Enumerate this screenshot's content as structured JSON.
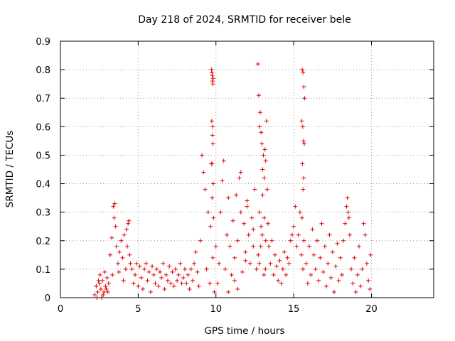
{
  "chart_data": {
    "type": "scatter",
    "title": "Day 218 of 2024, SRMTID for receiver bele",
    "xlabel": "GPS time / hours",
    "ylabel": "SRMTID / TECUs",
    "xlim": [
      0,
      24
    ],
    "ylim": [
      0,
      0.9
    ],
    "xticks": [
      0,
      5,
      10,
      15,
      20
    ],
    "yticks": [
      0,
      0.1,
      0.2,
      0.3,
      0.4,
      0.5,
      0.6,
      0.7,
      0.8,
      0.9
    ],
    "xtick_labels": [
      "0",
      "5",
      "10",
      "15",
      "20"
    ],
    "ytick_labels": [
      "0",
      "0.1",
      "0.2",
      "0.3",
      "0.4",
      "0.5",
      "0.6",
      "0.7",
      "0.8",
      "0.9"
    ],
    "grid": true,
    "marker": "+",
    "color": "#e00000",
    "series": [
      {
        "name": "SRMTID",
        "x": [
          2.2,
          2.3,
          2.4,
          2.5,
          2.6,
          2.7,
          2.8,
          2.9,
          3.0,
          2.35,
          2.55,
          2.75,
          2.95,
          3.1,
          2.45,
          2.65,
          2.85,
          3.05,
          3.2,
          3.3,
          3.4,
          3.5,
          3.45,
          3.55,
          3.6,
          3.7,
          3.8,
          3.9,
          4.0,
          4.1,
          4.2,
          4.3,
          4.35,
          4.4,
          4.5,
          3.35,
          3.75,
          4.05,
          4.25,
          4.45,
          4.6,
          4.7,
          4.8,
          4.9,
          5.0,
          5.1,
          5.2,
          5.3,
          5.4,
          5.5,
          5.6,
          5.7,
          5.8,
          5.9,
          6.0,
          6.1,
          6.2,
          6.3,
          6.4,
          6.5,
          6.6,
          6.7,
          6.8,
          6.9,
          7.0,
          7.1,
          7.2,
          7.3,
          7.4,
          7.5,
          7.6,
          7.7,
          7.8,
          7.9,
          8.0,
          8.1,
          8.2,
          8.3,
          8.4,
          8.5,
          8.6,
          8.7,
          8.8,
          8.9,
          9.0,
          9.1,
          9.2,
          9.3,
          9.4,
          9.5,
          9.6,
          9.65,
          9.7,
          9.75,
          9.8,
          9.85,
          9.9,
          10.0,
          9.72,
          9.74,
          9.76,
          9.78,
          9.8,
          9.82,
          9.73,
          9.79,
          9.77,
          9.81,
          9.75,
          9.83,
          10.1,
          10.2,
          10.3,
          10.4,
          10.5,
          10.6,
          10.7,
          10.8,
          10.9,
          11.0,
          11.1,
          11.2,
          11.3,
          11.4,
          11.5,
          11.6,
          11.7,
          11.8,
          11.9,
          12.0,
          12.1,
          12.2,
          12.3,
          12.4,
          12.5,
          12.6,
          10.8,
          11.2,
          11.6,
          12.0,
          12.4,
          11.4,
          11.9,
          12.7,
          12.75,
          12.8,
          12.85,
          12.9,
          12.95,
          13.0,
          13.05,
          13.1,
          13.15,
          13.2,
          13.25,
          13.3,
          12.8,
          12.9,
          13.0,
          13.1,
          13.2,
          12.72,
          12.78,
          12.88,
          12.98,
          13.08,
          13.18,
          13.35,
          13.4,
          13.5,
          13.6,
          13.7,
          13.8,
          13.9,
          14.0,
          14.1,
          14.2,
          14.3,
          14.4,
          14.5,
          14.6,
          14.7,
          14.8,
          14.9,
          15.0,
          15.1,
          15.2,
          15.3,
          15.4,
          15.5,
          15.55,
          15.6,
          15.65,
          15.7,
          15.52,
          15.58,
          15.62,
          15.68,
          15.56,
          15.64,
          15.6,
          15.54,
          15.66,
          15.59,
          15.8,
          15.9,
          16.0,
          16.1,
          16.2,
          16.3,
          16.4,
          16.5,
          16.6,
          16.7,
          16.8,
          16.9,
          17.0,
          17.1,
          17.2,
          17.3,
          17.4,
          17.5,
          17.6,
          17.7,
          17.8,
          17.9,
          18.0,
          18.1,
          18.2,
          18.3,
          18.4,
          18.45,
          18.5,
          18.55,
          18.6,
          18.7,
          18.8,
          18.9,
          19.0,
          19.1,
          19.2,
          19.3,
          19.4,
          19.5,
          19.6,
          19.7,
          19.8,
          19.9,
          19.95
        ],
        "y": [
          0.01,
          0.04,
          0.02,
          0.05,
          0.03,
          0.06,
          0.02,
          0.04,
          0.07,
          0.0,
          0.08,
          0.01,
          0.03,
          0.05,
          0.06,
          0.0,
          0.09,
          0.02,
          0.15,
          0.21,
          0.32,
          0.33,
          0.28,
          0.25,
          0.18,
          0.12,
          0.16,
          0.2,
          0.14,
          0.22,
          0.1,
          0.18,
          0.26,
          0.27,
          0.12,
          0.08,
          0.09,
          0.06,
          0.24,
          0.15,
          0.1,
          0.05,
          0.08,
          0.12,
          0.04,
          0.11,
          0.07,
          0.03,
          0.1,
          0.12,
          0.06,
          0.09,
          0.02,
          0.11,
          0.08,
          0.05,
          0.1,
          0.04,
          0.09,
          0.07,
          0.12,
          0.03,
          0.08,
          0.06,
          0.11,
          0.05,
          0.09,
          0.04,
          0.1,
          0.06,
          0.08,
          0.12,
          0.05,
          0.07,
          0.1,
          0.05,
          0.08,
          0.03,
          0.1,
          0.06,
          0.12,
          0.16,
          0.09,
          0.04,
          0.2,
          0.5,
          0.44,
          0.38,
          0.1,
          0.3,
          0.05,
          0.25,
          0.47,
          0.35,
          0.14,
          0.28,
          0.02,
          0.18,
          0.8,
          0.79,
          0.78,
          0.76,
          0.75,
          0.77,
          0.62,
          0.6,
          0.57,
          0.54,
          0.47,
          0.4,
          0.05,
          0.12,
          0.3,
          0.41,
          0.48,
          0.1,
          0.22,
          0.35,
          0.18,
          0.08,
          0.27,
          0.14,
          0.36,
          0.2,
          0.42,
          0.3,
          0.09,
          0.26,
          0.16,
          0.34,
          0.22,
          0.12,
          0.28,
          0.18,
          0.38,
          0.1,
          0.02,
          0.06,
          0.44,
          0.32,
          0.24,
          0.03,
          0.13,
          0.82,
          0.71,
          0.6,
          0.65,
          0.58,
          0.54,
          0.45,
          0.5,
          0.42,
          0.52,
          0.48,
          0.62,
          0.38,
          0.3,
          0.25,
          0.36,
          0.28,
          0.2,
          0.15,
          0.12,
          0.18,
          0.22,
          0.08,
          0.1,
          0.26,
          0.18,
          0.12,
          0.2,
          0.08,
          0.15,
          0.11,
          0.06,
          0.13,
          0.05,
          0.1,
          0.16,
          0.08,
          0.14,
          0.12,
          0.2,
          0.22,
          0.25,
          0.32,
          0.18,
          0.22,
          0.3,
          0.15,
          0.8,
          0.79,
          0.74,
          0.7,
          0.62,
          0.6,
          0.55,
          0.54,
          0.47,
          0.42,
          0.38,
          0.28,
          0.2,
          0.1,
          0.12,
          0.05,
          0.18,
          0.08,
          0.24,
          0.15,
          0.1,
          0.2,
          0.06,
          0.14,
          0.26,
          0.09,
          0.18,
          0.04,
          0.12,
          0.22,
          0.07,
          0.16,
          0.02,
          0.11,
          0.19,
          0.06,
          0.14,
          0.08,
          0.2,
          0.26,
          0.32,
          0.35,
          0.3,
          0.28,
          0.22,
          0.1,
          0.05,
          0.14,
          0.02,
          0.08,
          0.18,
          0.04,
          0.1,
          0.26,
          0.22,
          0.12,
          0.06,
          0.03,
          0.15
        ]
      }
    ]
  }
}
